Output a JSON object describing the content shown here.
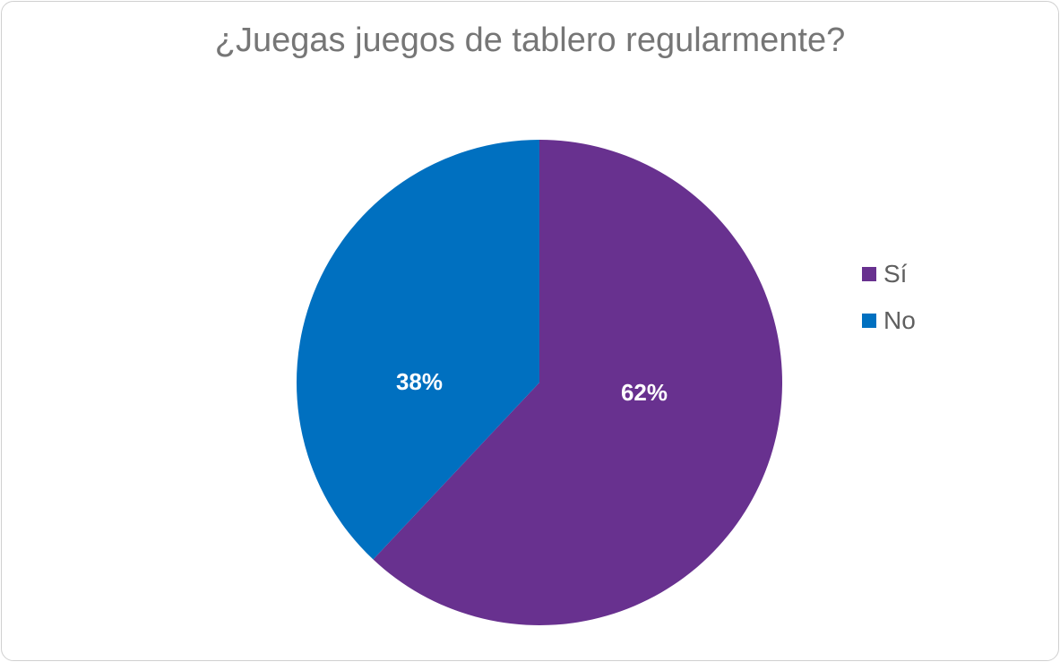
{
  "chart_data": {
    "type": "pie",
    "title": "¿Juegas juegos de tablero regularmente?",
    "categories": [
      "Sí",
      "No"
    ],
    "values": [
      62,
      38
    ],
    "data_labels": [
      "62%",
      "38%"
    ],
    "colors": [
      "#68318f",
      "#0070c0"
    ],
    "legend_position": "right",
    "start_angle": "12 o'clock, clockwise"
  }
}
